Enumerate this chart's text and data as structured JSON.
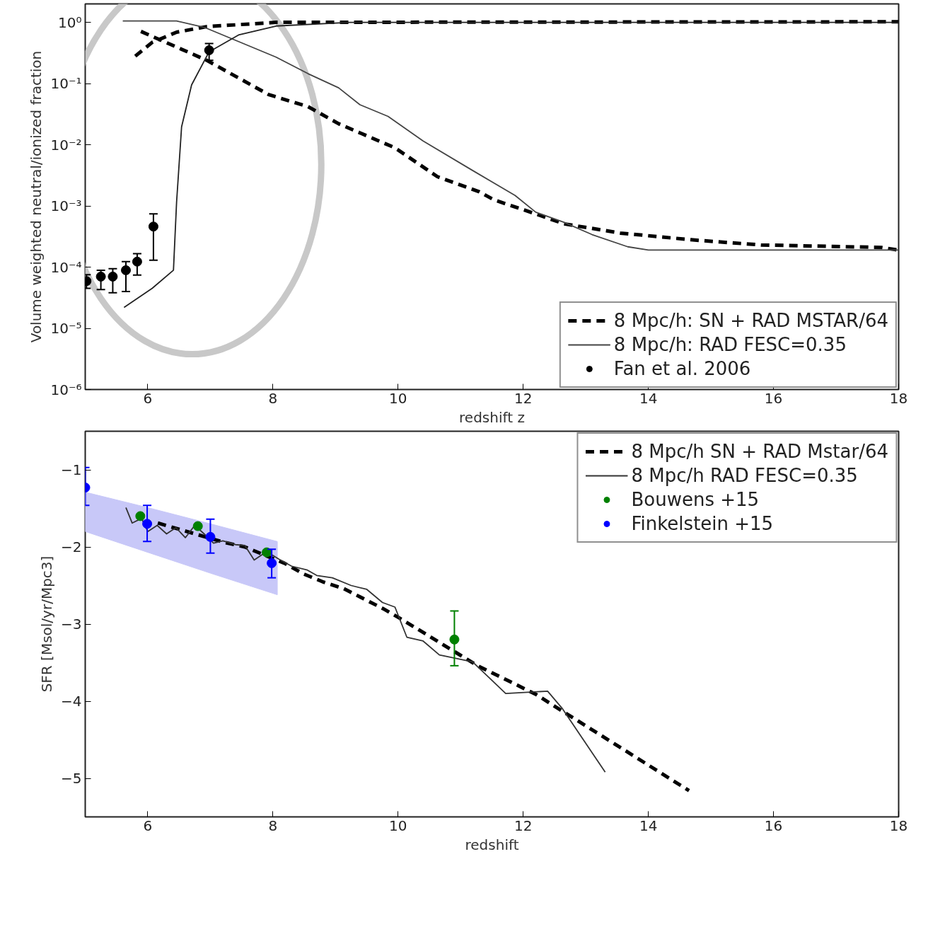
{
  "chart_data": [
    {
      "type": "line",
      "xlabel": "redshift z",
      "ylabel": "Volume weighted neutral/ionized fraction",
      "log": "y",
      "grid": false,
      "legend": "bottom right",
      "xlim": [
        5,
        18
      ],
      "xticks": [
        6,
        8,
        10,
        12,
        14,
        16,
        18
      ],
      "ylim": [
        1e-06,
        2
      ],
      "yticks": [
        {
          "value": 1e-06,
          "label": "10⁻⁶"
        },
        {
          "value": 1e-05,
          "label": "10⁻⁵"
        },
        {
          "value": 0.0001,
          "label": "10⁻⁴"
        },
        {
          "value": 0.001,
          "label": "10⁻³"
        },
        {
          "value": 0.01,
          "label": "10⁻²"
        },
        {
          "value": 0.1,
          "label": "10⁻¹"
        },
        {
          "value": 1,
          "label": "10⁰"
        }
      ],
      "series": [
        {
          "name": "8 Mpc/h: SN + RAD MSTAR/64",
          "type": "line",
          "line_style": "dashed",
          "color": "#000000",
          "x": [
            5.89,
            6.94,
            7.93,
            8.56,
            9.05,
            9.95,
            10.63,
            11.3,
            11.53,
            12.2,
            12.65,
            13.55,
            14.68,
            15.8,
            17.72,
            18
          ],
          "values": [
            0.71,
            0.24,
            0.066,
            0.042,
            0.022,
            0.0089,
            0.003,
            0.0017,
            0.00126,
            0.00074,
            0.00051,
            0.00036,
            0.00028,
            0.00023,
            0.00021,
            0.00019
          ]
        },
        {
          "type": "line",
          "line_style": "dashed",
          "color": "#000000",
          "x": [
            5.8,
            6.07,
            6.46,
            6.94,
            8.05,
            18
          ],
          "values": [
            0.28,
            0.47,
            0.69,
            0.85,
            1.0,
            1.02
          ]
        },
        {
          "name": "8 Mpc/h: RAD FESC=0.35",
          "type": "line",
          "line_style": "solid",
          "color": "#444444",
          "x": [
            5.6,
            6.46,
            6.9,
            8.05,
            8.56,
            9.05,
            9.39,
            9.84,
            10.4,
            11.19,
            11.87,
            12.2,
            12.65,
            13.1,
            13.67,
            14,
            18
          ],
          "values": [
            1.05,
            1.05,
            0.83,
            0.27,
            0.145,
            0.085,
            0.045,
            0.029,
            0.0115,
            0.0038,
            0.00148,
            0.00079,
            0.00054,
            0.00034,
            0.000215,
            0.00019,
            0.00019
          ]
        },
        {
          "type": "line",
          "line_style": "solid",
          "color": "#222222",
          "x": [
            5.62,
            6.07,
            6.41,
            6.46,
            6.54,
            6.7,
            6.98,
            7.45,
            8.05,
            9.23,
            18
          ],
          "values": [
            2.2e-05,
            4.5e-05,
            8.9e-05,
            0.00115,
            0.0196,
            0.095,
            0.33,
            0.62,
            0.87,
            1.0,
            1.0
          ]
        },
        {
          "name": "Fan et al. 2006",
          "type": "scatter",
          "marker": "circle",
          "color": "#000000",
          "x": [
            5.02,
            5.25,
            5.44,
            5.65,
            5.83,
            6.09,
            6.98
          ],
          "values": [
            5.9e-05,
            7e-05,
            7e-05,
            8.9e-05,
            0.000123,
            0.00046,
            0.35
          ],
          "errors": [
            [
              4.5e-05,
              7.5e-05
            ],
            [
              4.3e-05,
              8.9e-05
            ],
            [
              3.8e-05,
              9.4e-05
            ],
            [
              4e-05,
              0.000123
            ],
            [
              7.4e-05,
              0.000166
            ],
            [
              0.00013,
              0.00074
            ],
            [
              0.24,
              0.45
            ]
          ]
        }
      ]
    },
    {
      "type": "line",
      "xlabel": "redshift",
      "ylabel": "SFR [Msol/yr/Mpc3]",
      "grid": false,
      "legend": "top right",
      "xlim": [
        5,
        18
      ],
      "xticks": [
        6,
        8,
        10,
        12,
        14,
        16,
        18
      ],
      "ylim": [
        -5.5,
        -0.5
      ],
      "yticks": [
        {
          "value": -1,
          "label": "−1"
        },
        {
          "value": -2,
          "label": "−2"
        },
        {
          "value": -3,
          "label": "−3"
        },
        {
          "value": -4,
          "label": "−4"
        },
        {
          "value": -5,
          "label": "−5"
        }
      ],
      "series": [
        {
          "type": "line",
          "color": "#c8c8f8",
          "x": [
            5,
            6,
            7,
            8.07
          ],
          "values": [
            null,
            null,
            null,
            null
          ],
          "lower": [
            -1.8,
            -2.07,
            -2.34,
            -2.62
          ],
          "upper": [
            -1.29,
            -1.49,
            -1.7,
            -1.93
          ]
        },
        {
          "name": "8 Mpc/h SN + RAD Mstar/64",
          "type": "line",
          "line_style": "dashed",
          "color": "#000000",
          "x": [
            6.16,
            6.54,
            7.22,
            7.55,
            8.18,
            8.49,
            8.79,
            9.13,
            9.47,
            9.76,
            10.06,
            11.27,
            12.2,
            12.51,
            14.65
          ],
          "values": [
            -1.69,
            -1.78,
            -1.94,
            -2.0,
            -2.21,
            -2.35,
            -2.45,
            -2.54,
            -2.68,
            -2.8,
            -2.94,
            -3.54,
            -3.91,
            -4.07,
            -5.16
          ]
        },
        {
          "name": "8 Mpc/h RAD FESC=0.35",
          "type": "line",
          "line_style": "solid",
          "color": "#333333",
          "x": [
            5.65,
            5.75,
            5.9,
            6.0,
            6.15,
            6.3,
            6.45,
            6.6,
            6.75,
            6.9,
            7.05,
            7.2,
            7.4,
            7.55,
            7.7,
            7.9,
            8.1,
            8.3,
            8.55,
            8.7,
            8.95,
            9.25,
            9.5,
            9.75,
            9.95,
            10.14,
            10.4,
            10.66,
            11.19,
            11.72,
            12.39,
            12.62,
            13.31
          ],
          "values": [
            -1.49,
            -1.69,
            -1.63,
            -1.8,
            -1.72,
            -1.83,
            -1.75,
            -1.88,
            -1.72,
            -1.83,
            -1.95,
            -1.92,
            -1.97,
            -1.98,
            -2.17,
            -2.06,
            -2.16,
            -2.25,
            -2.3,
            -2.37,
            -2.4,
            -2.5,
            -2.55,
            -2.72,
            -2.78,
            -3.17,
            -3.22,
            -3.4,
            -3.49,
            -3.9,
            -3.87,
            -4.09,
            -4.92
          ]
        },
        {
          "name": "Bouwens +15",
          "type": "scatter",
          "marker": "circle",
          "color": "#008000",
          "x": [
            5.88,
            6.8,
            7.9,
            10.9
          ],
          "values": [
            -1.6,
            -1.73,
            -2.07,
            -3.2
          ],
          "errors": [
            null,
            null,
            null,
            [
              -3.54,
              -2.83
            ]
          ]
        },
        {
          "name": "Finkelstein +15",
          "type": "scatter",
          "marker": "circle",
          "color": "#0000ff",
          "x": [
            5.0,
            5.99,
            7.0,
            7.98
          ],
          "values": [
            -1.23,
            -1.7,
            -1.87,
            -2.21
          ],
          "errors": [
            [
              -1.46,
              -0.97
            ],
            [
              -1.93,
              -1.46
            ],
            [
              -2.08,
              -1.64
            ],
            [
              -2.4,
              -2.03
            ]
          ]
        }
      ]
    }
  ]
}
